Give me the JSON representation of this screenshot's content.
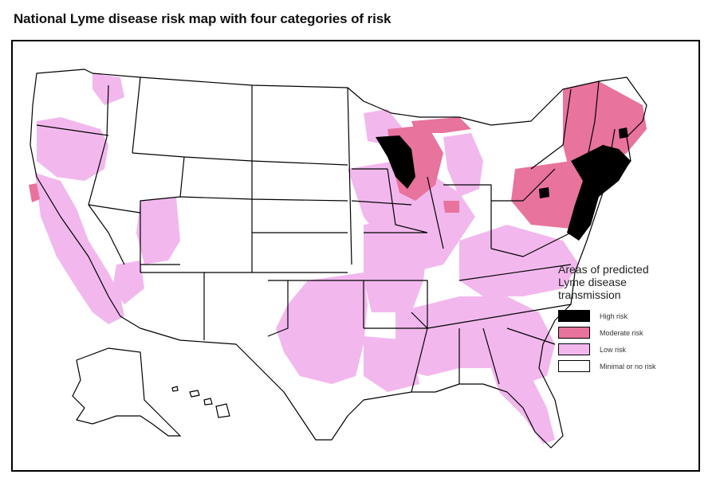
{
  "title": "National Lyme disease risk map with four categories of risk",
  "legend": {
    "title_lines": [
      "Areas of predicted",
      "Lyme disease",
      "transmission"
    ],
    "items": [
      {
        "label": "High risk",
        "color": "#000000"
      },
      {
        "label": "Moderate risk",
        "color": "#e8739c"
      },
      {
        "label": "Low risk",
        "color": "#f2b8ee"
      },
      {
        "label": "Minimal or no risk",
        "color": "#ffffff"
      }
    ]
  },
  "colors": {
    "state_border": "#000000",
    "background": "#ffffff"
  }
}
